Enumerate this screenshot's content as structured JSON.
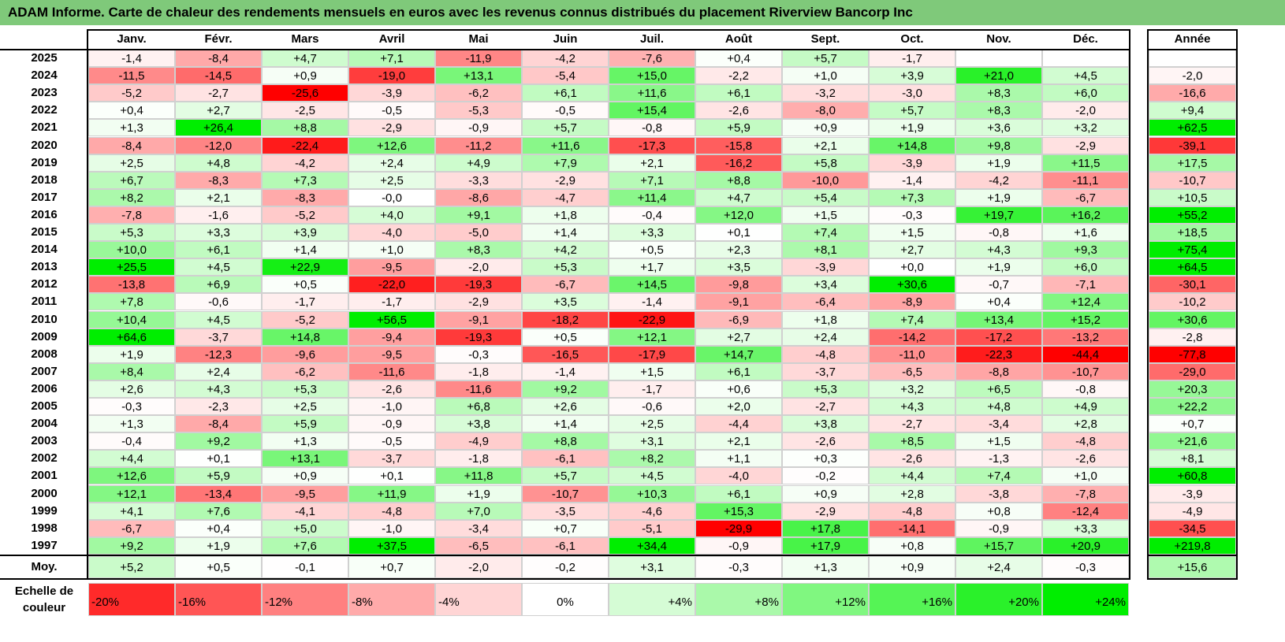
{
  "title": "ADAM Informe. Carte de chaleur des rendements mensuels en euros avec les revenus connus distribués du placement Riverview Bancorp Inc",
  "colors": {
    "title_bar": "#7fc97a",
    "negative": "#ff0000",
    "neutral": "#ffffff",
    "positive": "#00ee00"
  },
  "chart_data": {
    "type": "heatmap",
    "title": "ADAM Informe. Carte de chaleur des rendements mensuels en euros avec les revenus connus distribués du placement Riverview Bancorp Inc",
    "columns": [
      "Janv.",
      "Févr.",
      "Mars",
      "Avril",
      "Mai",
      "Juin",
      "Juil.",
      "Août",
      "Sept.",
      "Oct.",
      "Nov.",
      "Déc."
    ],
    "year_header": "Année",
    "rows": [
      {
        "year": "2025",
        "values": [
          "-1,4",
          "-8,4",
          "+4,7",
          "+7,1",
          "-11,9",
          "-4,2",
          "-7,6",
          "+0,4",
          "+5,7",
          "-1,7",
          "",
          ""
        ],
        "annual": ""
      },
      {
        "year": "2024",
        "values": [
          "-11,5",
          "-14,5",
          "+0,9",
          "-19,0",
          "+13,1",
          "-5,4",
          "+15,0",
          "-2,2",
          "+1,0",
          "+3,9",
          "+21,0",
          "+4,5"
        ],
        "annual": "-2,0"
      },
      {
        "year": "2023",
        "values": [
          "-5,2",
          "-2,7",
          "-25,6",
          "-3,9",
          "-6,2",
          "+6,1",
          "+11,6",
          "+6,1",
          "-3,2",
          "-3,0",
          "+8,3",
          "+6,0"
        ],
        "annual": "-16,6"
      },
      {
        "year": "2022",
        "values": [
          "+0,4",
          "+2,7",
          "-2,5",
          "-0,5",
          "-5,3",
          "-0,5",
          "+15,4",
          "-2,6",
          "-8,0",
          "+5,7",
          "+8,3",
          "-2,0"
        ],
        "annual": "+9,4"
      },
      {
        "year": "2021",
        "values": [
          "+1,3",
          "+26,4",
          "+8,8",
          "-2,9",
          "-0,9",
          "+5,7",
          "-0,8",
          "+5,9",
          "+0,9",
          "+1,9",
          "+3,6",
          "+3,2"
        ],
        "annual": "+62,5"
      },
      {
        "year": "2020",
        "values": [
          "-8,4",
          "-12,0",
          "-22,4",
          "+12,6",
          "-11,2",
          "+11,6",
          "-17,3",
          "-15,8",
          "+2,1",
          "+14,8",
          "+9,8",
          "-2,9"
        ],
        "annual": "-39,1"
      },
      {
        "year": "2019",
        "values": [
          "+2,5",
          "+4,8",
          "-4,2",
          "+2,4",
          "+4,9",
          "+7,9",
          "+2,1",
          "-16,2",
          "+5,8",
          "-3,9",
          "+1,9",
          "+11,5"
        ],
        "annual": "+17,5"
      },
      {
        "year": "2018",
        "values": [
          "+6,7",
          "-8,3",
          "+7,3",
          "+2,5",
          "-3,3",
          "-2,9",
          "+7,1",
          "+8,8",
          "-10,0",
          "-1,4",
          "-4,2",
          "-11,1"
        ],
        "annual": "-10,7"
      },
      {
        "year": "2017",
        "values": [
          "+8,2",
          "+2,1",
          "-8,3",
          "-0,0",
          "-8,6",
          "-4,7",
          "+11,4",
          "+4,7",
          "+5,4",
          "+7,3",
          "+1,9",
          "-6,7"
        ],
        "annual": "+10,5"
      },
      {
        "year": "2016",
        "values": [
          "-7,8",
          "-1,6",
          "-5,2",
          "+4,0",
          "+9,1",
          "+1,8",
          "-0,4",
          "+12,0",
          "+1,5",
          "-0,3",
          "+19,7",
          "+16,2"
        ],
        "annual": "+55,2"
      },
      {
        "year": "2015",
        "values": [
          "+5,3",
          "+3,3",
          "+3,9",
          "-4,0",
          "-5,0",
          "+1,4",
          "+3,3",
          "+0,1",
          "+7,4",
          "+1,5",
          "-0,8",
          "+1,6"
        ],
        "annual": "+18,5"
      },
      {
        "year": "2014",
        "values": [
          "+10,0",
          "+6,1",
          "+1,4",
          "+1,0",
          "+8,3",
          "+4,2",
          "+0,5",
          "+2,3",
          "+8,1",
          "+2,7",
          "+4,3",
          "+9,3"
        ],
        "annual": "+75,4"
      },
      {
        "year": "2013",
        "values": [
          "+25,5",
          "+4,5",
          "+22,9",
          "-9,5",
          "-2,0",
          "+5,3",
          "+1,7",
          "+3,5",
          "-3,9",
          "+0,0",
          "+1,9",
          "+6,0"
        ],
        "annual": "+64,5"
      },
      {
        "year": "2012",
        "values": [
          "-13,8",
          "+6,9",
          "+0,5",
          "-22,0",
          "-19,3",
          "-6,7",
          "+14,5",
          "-9,8",
          "+3,4",
          "+30,6",
          "-0,7",
          "-7,1"
        ],
        "annual": "-30,1"
      },
      {
        "year": "2011",
        "values": [
          "+7,8",
          "-0,6",
          "-1,7",
          "-1,7",
          "-2,9",
          "+3,5",
          "-1,4",
          "-9,1",
          "-6,4",
          "-8,9",
          "+0,4",
          "+12,4"
        ],
        "annual": "-10,2"
      },
      {
        "year": "2010",
        "values": [
          "+10,4",
          "+4,5",
          "-5,2",
          "+56,5",
          "-9,1",
          "-18,2",
          "-22,9",
          "-6,9",
          "+1,8",
          "+7,4",
          "+13,4",
          "+15,2"
        ],
        "annual": "+30,6"
      },
      {
        "year": "2009",
        "values": [
          "+64,6",
          "-3,7",
          "+14,8",
          "-9,4",
          "-19,3",
          "+0,5",
          "+12,1",
          "+2,7",
          "+2,4",
          "-14,2",
          "-17,2",
          "-13,2"
        ],
        "annual": "-2,8"
      },
      {
        "year": "2008",
        "values": [
          "+1,9",
          "-12,3",
          "-9,6",
          "-9,5",
          "-0,3",
          "-16,5",
          "-17,9",
          "+14,7",
          "-4,8",
          "-11,0",
          "-22,3",
          "-44,4"
        ],
        "annual": "-77,8"
      },
      {
        "year": "2007",
        "values": [
          "+8,4",
          "+2,4",
          "-6,2",
          "-11,6",
          "-1,8",
          "-1,4",
          "+1,5",
          "+6,1",
          "-3,7",
          "-6,5",
          "-8,8",
          "-10,7"
        ],
        "annual": "-29,0"
      },
      {
        "year": "2006",
        "values": [
          "+2,6",
          "+4,3",
          "+5,3",
          "-2,6",
          "-11,6",
          "+9,2",
          "-1,7",
          "+0,6",
          "+5,3",
          "+3,2",
          "+6,5",
          "-0,8"
        ],
        "annual": "+20,3"
      },
      {
        "year": "2005",
        "values": [
          "-0,3",
          "-2,3",
          "+2,5",
          "-1,0",
          "+6,8",
          "+2,6",
          "-0,6",
          "+2,0",
          "-2,7",
          "+4,3",
          "+4,8",
          "+4,9"
        ],
        "annual": "+22,2"
      },
      {
        "year": "2004",
        "values": [
          "+1,3",
          "-8,4",
          "+5,9",
          "-0,9",
          "+3,8",
          "+1,4",
          "+2,5",
          "-4,4",
          "+3,8",
          "-2,7",
          "-3,4",
          "+2,8"
        ],
        "annual": "+0,7"
      },
      {
        "year": "2003",
        "values": [
          "-0,4",
          "+9,2",
          "+1,3",
          "-0,5",
          "-4,9",
          "+8,8",
          "+3,1",
          "+2,1",
          "-2,6",
          "+8,5",
          "+1,5",
          "-4,8"
        ],
        "annual": "+21,6"
      },
      {
        "year": "2002",
        "values": [
          "+4,4",
          "+0,1",
          "+13,1",
          "-3,7",
          "-1,8",
          "-6,1",
          "+8,2",
          "+1,1",
          "+0,3",
          "-2,6",
          "-1,3",
          "-2,6"
        ],
        "annual": "+8,1"
      },
      {
        "year": "2001",
        "values": [
          "+12,6",
          "+5,9",
          "+0,9",
          "+0,1",
          "+11,8",
          "+5,7",
          "+4,5",
          "-4,0",
          "-0,2",
          "+4,4",
          "+7,4",
          "+1,0"
        ],
        "annual": "+60,8"
      },
      {
        "year": "2000",
        "values": [
          "+12,1",
          "-13,4",
          "-9,5",
          "+11,9",
          "+1,9",
          "-10,7",
          "+10,3",
          "+6,1",
          "+0,9",
          "+2,8",
          "-3,8",
          "-7,8"
        ],
        "annual": "-3,9"
      },
      {
        "year": "1999",
        "values": [
          "+4,1",
          "+7,6",
          "-4,1",
          "-4,8",
          "+7,0",
          "-3,5",
          "-4,6",
          "+15,3",
          "-2,9",
          "-4,8",
          "+0,8",
          "-12,4"
        ],
        "annual": "-4,9"
      },
      {
        "year": "1998",
        "values": [
          "-6,7",
          "+0,4",
          "+5,0",
          "-1,0",
          "-3,4",
          "+0,7",
          "-5,1",
          "-29,9",
          "+17,8",
          "-14,1",
          "-0,9",
          "+3,3"
        ],
        "annual": "-34,5"
      },
      {
        "year": "1997",
        "values": [
          "+9,2",
          "+1,9",
          "+7,6",
          "+37,5",
          "-6,5",
          "-6,1",
          "+34,4",
          "-0,9",
          "+17,9",
          "+0,8",
          "+15,7",
          "+20,9"
        ],
        "annual": "+219,8"
      }
    ],
    "average": {
      "label": "Moy.",
      "values": [
        "+5,2",
        "+0,5",
        "-0,1",
        "+0,7",
        "-2,0",
        "-0,2",
        "+3,1",
        "-0,3",
        "+1,3",
        "+0,9",
        "+2,4",
        "-0,3"
      ],
      "annual": "+15,6"
    },
    "scale": {
      "label_line1": "Echelle de",
      "label_line2": "couleur",
      "steps": [
        "-20%",
        "-16%",
        "-12%",
        "-8%",
        "-4%",
        "0%",
        "+4%",
        "+8%",
        "+12%",
        "+16%",
        "+20%",
        "+24%"
      ],
      "step_values": [
        -20,
        -16,
        -12,
        -8,
        -4,
        0,
        4,
        8,
        12,
        16,
        20,
        24
      ]
    }
  }
}
